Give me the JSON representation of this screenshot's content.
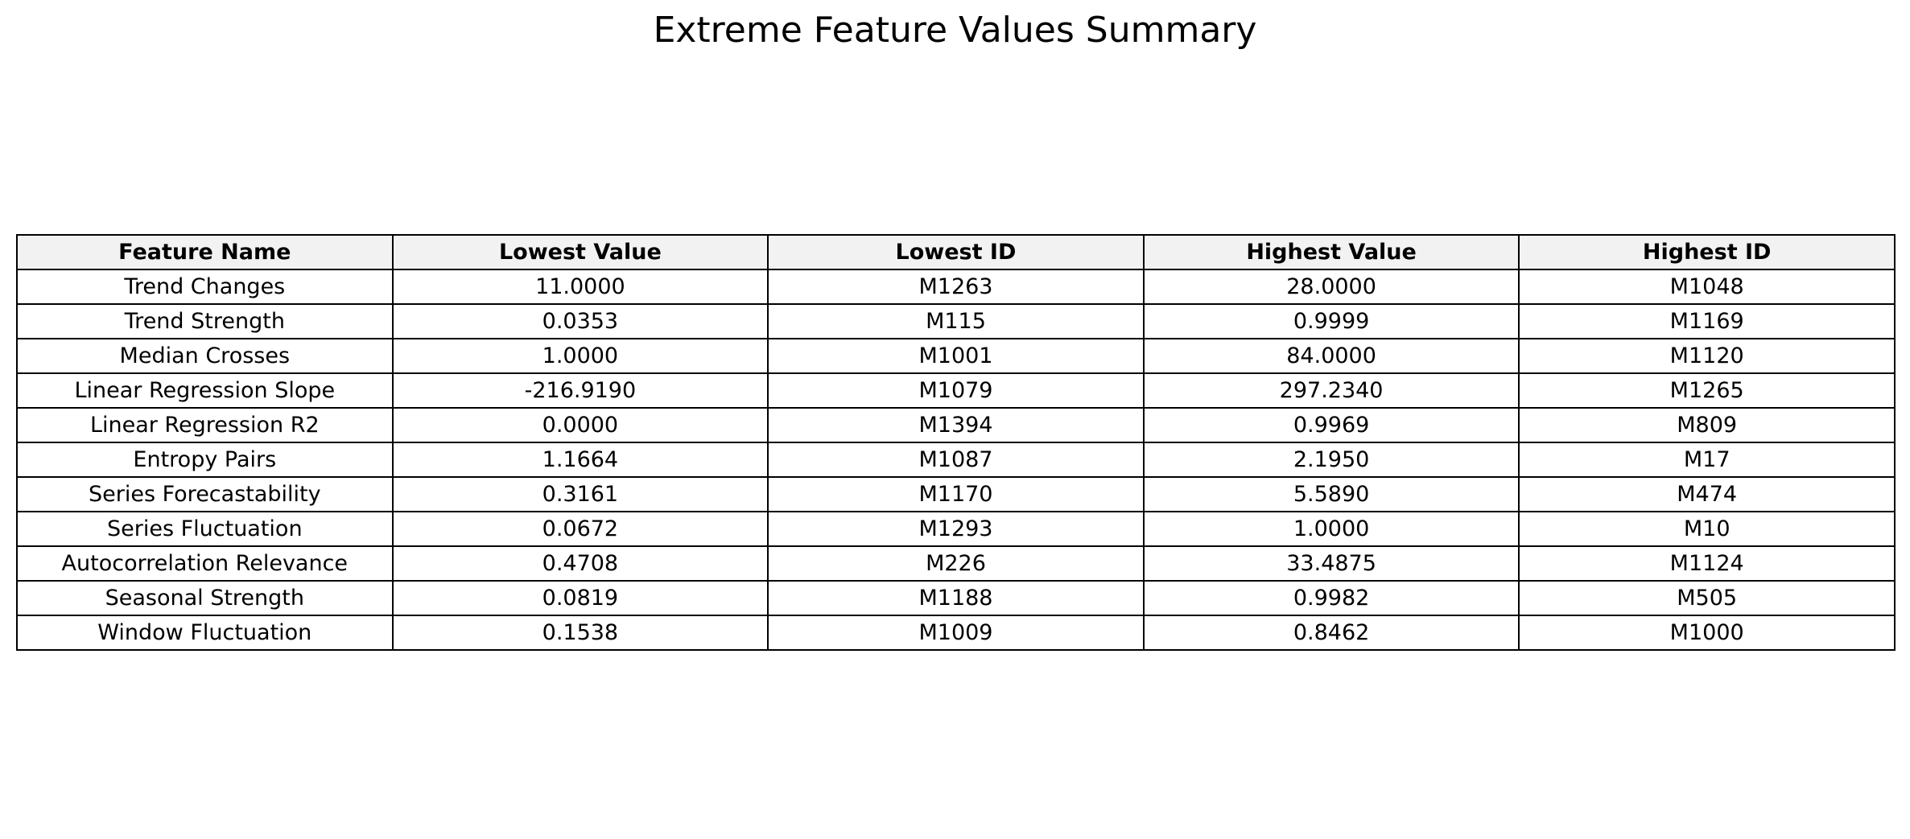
{
  "chart_data": {
    "type": "table",
    "title": "Extreme Feature Values Summary",
    "header_background": "#f2f2f2",
    "columns": [
      "Feature Name",
      "Lowest Value",
      "Lowest ID",
      "Highest Value",
      "Highest ID"
    ],
    "rows": [
      [
        "Trend Changes",
        "11.0000",
        "M1263",
        "28.0000",
        "M1048"
      ],
      [
        "Trend Strength",
        "0.0353",
        "M115",
        "0.9999",
        "M1169"
      ],
      [
        "Median Crosses",
        "1.0000",
        "M1001",
        "84.0000",
        "M1120"
      ],
      [
        "Linear Regression Slope",
        "-216.9190",
        "M1079",
        "297.2340",
        "M1265"
      ],
      [
        "Linear Regression R2",
        "0.0000",
        "M1394",
        "0.9969",
        "M809"
      ],
      [
        "Entropy Pairs",
        "1.1664",
        "M1087",
        "2.1950",
        "M17"
      ],
      [
        "Series Forecastability",
        "0.3161",
        "M1170",
        "5.5890",
        "M474"
      ],
      [
        "Series Fluctuation",
        "0.0672",
        "M1293",
        "1.0000",
        "M10"
      ],
      [
        "Autocorrelation Relevance",
        "0.4708",
        "M226",
        "33.4875",
        "M1124"
      ],
      [
        "Seasonal Strength",
        "0.0819",
        "M1188",
        "0.9982",
        "M505"
      ],
      [
        "Window Fluctuation",
        "0.1538",
        "M1009",
        "0.8462",
        "M1000"
      ]
    ]
  }
}
